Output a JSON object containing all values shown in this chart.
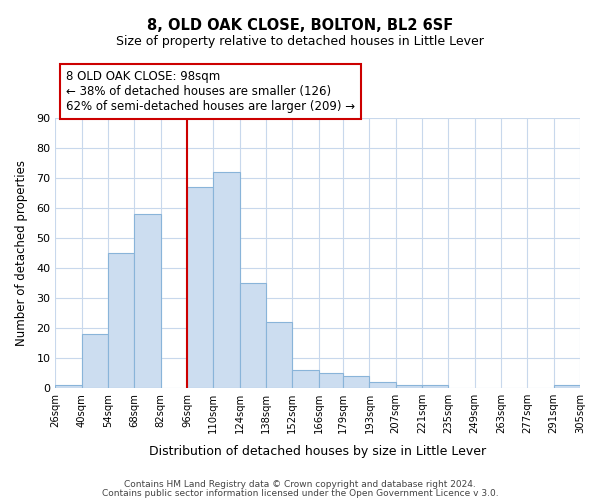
{
  "title": "8, OLD OAK CLOSE, BOLTON, BL2 6SF",
  "subtitle": "Size of property relative to detached houses in Little Lever",
  "xlabel": "Distribution of detached houses by size in Little Lever",
  "ylabel": "Number of detached properties",
  "bin_edges": [
    26,
    40,
    54,
    68,
    82,
    96,
    110,
    124,
    138,
    152,
    166,
    179,
    193,
    207,
    221,
    235,
    249,
    263,
    277,
    291,
    305
  ],
  "bin_labels": [
    "26sqm",
    "40sqm",
    "54sqm",
    "68sqm",
    "82sqm",
    "96sqm",
    "110sqm",
    "124sqm",
    "138sqm",
    "152sqm",
    "166sqm",
    "179sqm",
    "193sqm",
    "207sqm",
    "221sqm",
    "235sqm",
    "249sqm",
    "263sqm",
    "277sqm",
    "291sqm",
    "305sqm"
  ],
  "counts": [
    1,
    18,
    45,
    58,
    0,
    67,
    72,
    35,
    22,
    6,
    5,
    4,
    2,
    1,
    1,
    0,
    0,
    0,
    0,
    1
  ],
  "bar_color": "#ccddf0",
  "bar_edge_color": "#89b4d9",
  "reference_line_x": 96,
  "reference_line_color": "#cc0000",
  "ylim": [
    0,
    90
  ],
  "yticks": [
    0,
    10,
    20,
    30,
    40,
    50,
    60,
    70,
    80,
    90
  ],
  "annotation_box_text": "8 OLD OAK CLOSE: 98sqm\n← 38% of detached houses are smaller (126)\n62% of semi-detached houses are larger (209) →",
  "footer_line1": "Contains HM Land Registry data © Crown copyright and database right 2024.",
  "footer_line2": "Contains public sector information licensed under the Open Government Licence v 3.0.",
  "background_color": "#ffffff",
  "grid_color": "#c8d8ec"
}
